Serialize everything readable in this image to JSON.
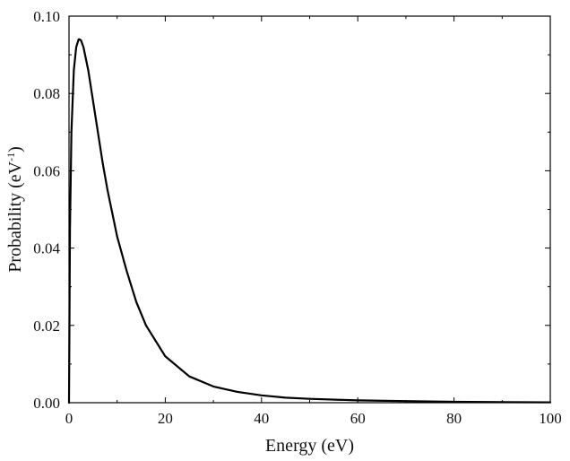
{
  "chart_data": {
    "type": "line",
    "title": "",
    "xlabel": "Energy (eV)",
    "ylabel": {
      "prefix": "Probability (eV",
      "superscript": "-1",
      "suffix": ")"
    },
    "xlim": [
      0,
      100
    ],
    "ylim": [
      0.0,
      0.1
    ],
    "xticks": [
      0,
      20,
      40,
      60,
      80,
      100
    ],
    "xtick_labels": [
      "0",
      "20",
      "40",
      "60",
      "80",
      "100"
    ],
    "yticks": [
      0.0,
      0.02,
      0.04,
      0.06,
      0.08,
      0.1
    ],
    "ytick_labels": [
      "0.00",
      "0.02",
      "0.04",
      "0.06",
      "0.08",
      "0.10"
    ],
    "grid": false,
    "legend": "none",
    "series": [
      {
        "color": "#000000",
        "x": [
          0,
          0.2,
          0.5,
          1.0,
          1.5,
          2.0,
          2.2,
          2.5,
          3,
          4,
          5,
          6,
          7,
          8,
          9,
          10,
          12,
          14,
          16,
          18,
          20,
          25,
          30,
          35,
          40,
          45,
          50,
          60,
          70,
          80,
          90,
          100
        ],
        "y": [
          0.0,
          0.045,
          0.07,
          0.086,
          0.092,
          0.094,
          0.094,
          0.0937,
          0.092,
          0.086,
          0.078,
          0.07,
          0.062,
          0.055,
          0.049,
          0.043,
          0.034,
          0.026,
          0.02,
          0.016,
          0.012,
          0.0068,
          0.0042,
          0.0028,
          0.0019,
          0.0013,
          0.001,
          0.0006,
          0.0004,
          0.00025,
          0.00015,
          0.0001
        ]
      }
    ]
  }
}
